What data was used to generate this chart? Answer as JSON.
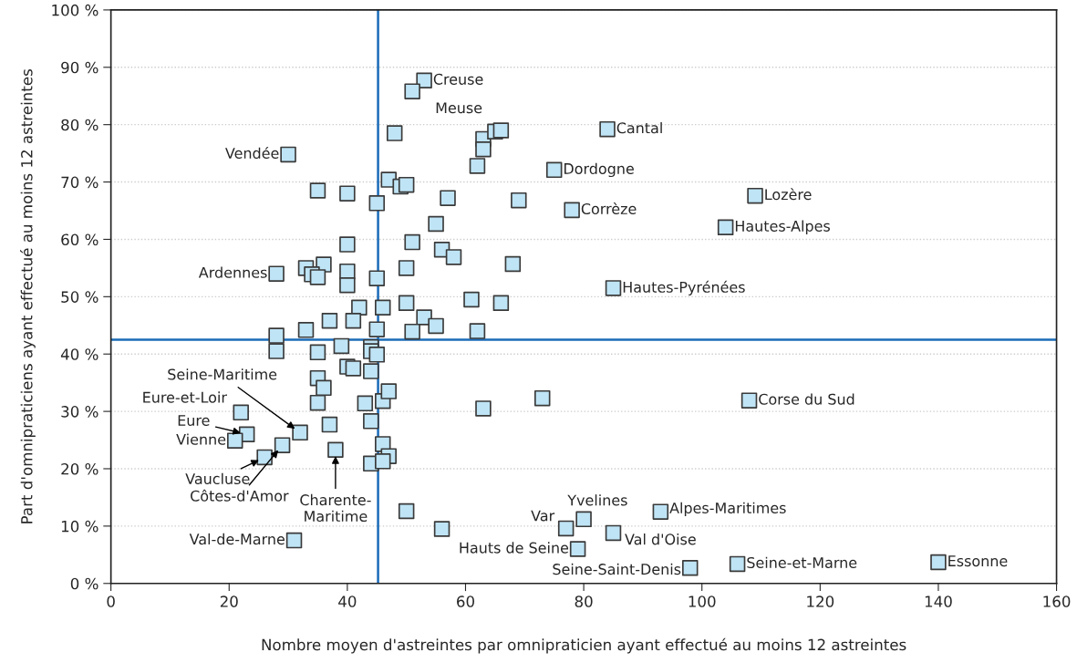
{
  "chart_data": {
    "type": "scatter",
    "xlabel": "Nombre moyen d'astreintes par omnipraticien ayant effectué au moins 12 astreintes",
    "ylabel": "Part d'omnipraticiens ayant effectué au moins 12 astreintes",
    "xlim": [
      0,
      160
    ],
    "xticks": [
      0,
      20,
      40,
      60,
      80,
      100,
      120,
      140,
      160
    ],
    "ylim": [
      0,
      100
    ],
    "yticks": [
      {
        "value": 0,
        "label": "0 %"
      },
      {
        "value": 10,
        "label": "10 %"
      },
      {
        "value": 20,
        "label": "20 %"
      },
      {
        "value": 30,
        "label": "30 %"
      },
      {
        "value": 40,
        "label": "40 %"
      },
      {
        "value": 50,
        "label": "50 %"
      },
      {
        "value": 60,
        "label": "60 %"
      },
      {
        "value": 70,
        "label": "70 %"
      },
      {
        "value": 80,
        "label": "80 %"
      },
      {
        "value": 90,
        "label": "90 %"
      },
      {
        "value": 100,
        "label": "100 %"
      }
    ],
    "grid": "y",
    "marker": "square",
    "legend": false,
    "ref_lines": [
      {
        "axis": "x",
        "value": 45.2,
        "color": "#1a6bb8"
      },
      {
        "axis": "y",
        "value": 42.5,
        "color": "#1a6bb8"
      }
    ],
    "series": [
      {
        "color": "#bfe4f5",
        "x": [
          53,
          51,
          30,
          84,
          75,
          109,
          78,
          104,
          28,
          85,
          108,
          32,
          22,
          23,
          21,
          26,
          29,
          38,
          31,
          80,
          77,
          93,
          85,
          79,
          98,
          106,
          140,
          48,
          63,
          63,
          65,
          66,
          62,
          47,
          49,
          50,
          35,
          40,
          45,
          57,
          69,
          55,
          51,
          40,
          56,
          58,
          68,
          36,
          33,
          34,
          35,
          40,
          40,
          45,
          50,
          61,
          66,
          50,
          46,
          42,
          53,
          55,
          51,
          62,
          37,
          41,
          45,
          33,
          28,
          28,
          35,
          39,
          44,
          44,
          45,
          40,
          41,
          44,
          35,
          36,
          35,
          43,
          46,
          47,
          63,
          73,
          37,
          44,
          46,
          47,
          44,
          46,
          50,
          56
        ],
        "values": [
          87.7,
          85.8,
          74.8,
          79.2,
          72.1,
          67.6,
          65.1,
          62.1,
          54,
          51.5,
          31.9,
          26.3,
          29.8,
          26,
          24.9,
          22,
          24.1,
          23.3,
          7.5,
          11.2,
          9.6,
          12.5,
          8.8,
          6,
          2.7,
          3.4,
          3.7,
          78.5,
          77.5,
          75.7,
          78.8,
          79,
          72.8,
          70.4,
          69.2,
          69.5,
          68.5,
          68,
          66.3,
          67.2,
          66.8,
          62.7,
          59.5,
          59.1,
          58.2,
          56.9,
          55.7,
          55.6,
          55,
          53.9,
          53.4,
          54.4,
          52,
          53.2,
          55,
          49.5,
          48.9,
          48.9,
          48.1,
          48.1,
          46.4,
          44.9,
          43.9,
          44,
          45.8,
          45.8,
          44.3,
          44.2,
          43.2,
          40.5,
          40.3,
          41.4,
          41.2,
          40.5,
          39.9,
          37.8,
          37.5,
          37,
          35.8,
          34.1,
          31.5,
          31.4,
          31.8,
          33.5,
          30.5,
          32.3,
          27.7,
          28.3,
          24.3,
          22.2,
          20.9,
          21.3,
          12.6,
          9.5
        ]
      }
    ],
    "annotations": [
      {
        "text": "Creuse",
        "x": 53,
        "y": 87.7
      },
      {
        "text": "Meuse",
        "x": 51,
        "y": 85.8
      },
      {
        "text": "Vendée",
        "x": 30,
        "y": 74.8
      },
      {
        "text": "Cantal",
        "x": 84,
        "y": 79.2
      },
      {
        "text": "Dordogne",
        "x": 75,
        "y": 72.1
      },
      {
        "text": "Lozère",
        "x": 109,
        "y": 67.6
      },
      {
        "text": "Corrèze",
        "x": 78,
        "y": 65.1
      },
      {
        "text": "Hautes-Alpes",
        "x": 104,
        "y": 62.1
      },
      {
        "text": "Ardennes",
        "x": 28,
        "y": 54
      },
      {
        "text": "Hautes-Pyrénées",
        "x": 85,
        "y": 51.5
      },
      {
        "text": "Corse du Sud",
        "x": 108,
        "y": 31.9
      },
      {
        "text": "Seine-Maritime",
        "x": 32,
        "y": 26.3
      },
      {
        "text": "Eure-et-Loir",
        "x": 22,
        "y": 29.8
      },
      {
        "text": "Eure",
        "x": 23,
        "y": 26
      },
      {
        "text": "Vienne",
        "x": 21,
        "y": 24.9
      },
      {
        "text": "Vaucluse",
        "x": 26,
        "y": 22
      },
      {
        "text": "Côtes-d'Amor",
        "x": 29,
        "y": 24.1
      },
      {
        "text": "Charente-\nMaritime",
        "x": 38,
        "y": 23.3
      },
      {
        "text": "Val-de-Marne",
        "x": 31,
        "y": 7.5
      },
      {
        "text": "Yvelines",
        "x": 80,
        "y": 11.2
      },
      {
        "text": "Var",
        "x": 77,
        "y": 9.6
      },
      {
        "text": "Alpes-Maritimes",
        "x": 93,
        "y": 12.5
      },
      {
        "text": "Val d'Oise",
        "x": 85,
        "y": 8.8
      },
      {
        "text": "Hauts de Seine",
        "x": 79,
        "y": 6
      },
      {
        "text": "Seine-Saint-Denis",
        "x": 98,
        "y": 2.7
      },
      {
        "text": "Seine-et-Marne",
        "x": 106,
        "y": 3.4
      },
      {
        "text": "Essonne",
        "x": 140,
        "y": 3.7
      }
    ]
  }
}
